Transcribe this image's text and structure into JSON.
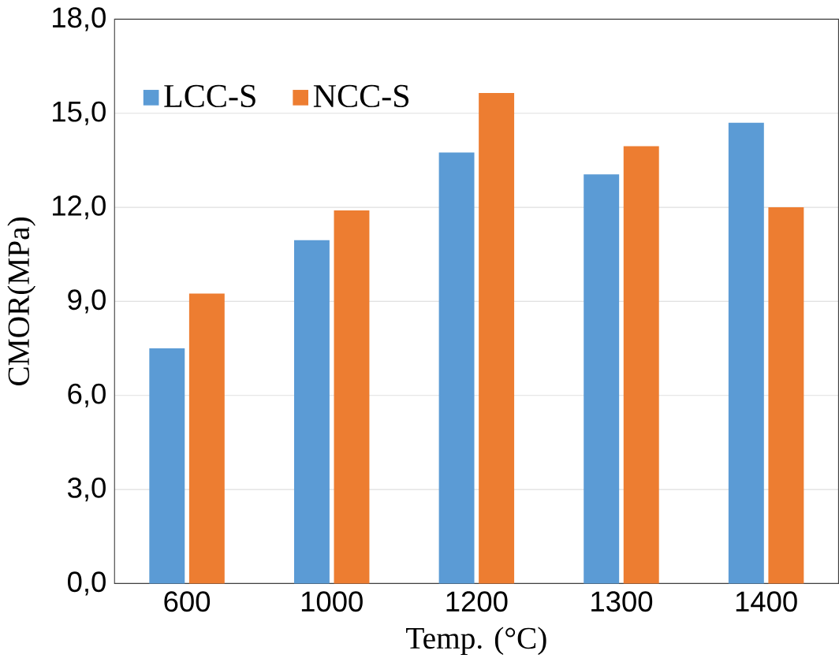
{
  "chart_data": {
    "type": "bar",
    "xlabel": "Temp. (°C)",
    "ylabel": "CMOR(MPa)",
    "categories": [
      "600",
      "1000",
      "1200",
      "1300",
      "1400"
    ],
    "series": [
      {
        "name": "LCC-S",
        "color": "#5b9bd5",
        "values": [
          7.5,
          10.95,
          13.75,
          13.05,
          14.7
        ]
      },
      {
        "name": "NCC-S",
        "color": "#ed7d31",
        "values": [
          9.25,
          11.9,
          15.65,
          13.95,
          12.0
        ]
      }
    ],
    "ylim": [
      0,
      18
    ],
    "yticks": [
      {
        "value": 0,
        "label": "0,0"
      },
      {
        "value": 3,
        "label": "3,0"
      },
      {
        "value": 6,
        "label": "6,0"
      },
      {
        "value": 9,
        "label": "9,0"
      },
      {
        "value": 12,
        "label": "12,0"
      },
      {
        "value": 15,
        "label": "15,0"
      },
      {
        "value": 18,
        "label": "18,0"
      }
    ],
    "grid": "y",
    "legend": "top left"
  }
}
